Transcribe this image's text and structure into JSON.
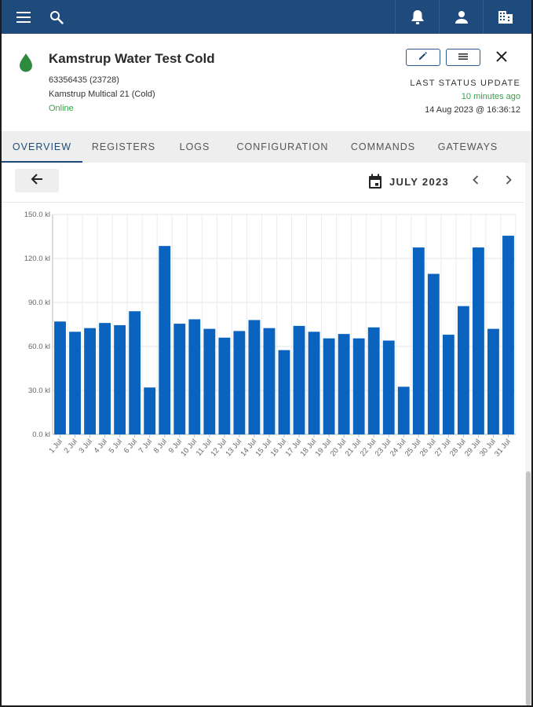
{
  "appbar": {
    "icons": [
      "menu-icon",
      "search-icon",
      "bell-icon",
      "account-icon",
      "building-icon"
    ]
  },
  "device": {
    "title": "Kamstrup Water Test Cold",
    "id_line": "63356435 (23728)",
    "model": "Kamstrup Multical 21 (Cold)",
    "status": "Online",
    "status_color": "#3aa14a",
    "icon": "water-drop-icon",
    "icon_color": "#2e8b3e"
  },
  "status_update": {
    "label": "LAST STATUS UPDATE",
    "ago": "10 minutes ago",
    "timestamp": "14 Aug 2023 @ 16:36:12"
  },
  "tabs": [
    {
      "label": "OVERVIEW",
      "active": true
    },
    {
      "label": "REGISTERS",
      "active": false
    },
    {
      "label": "LOGS",
      "active": false
    },
    {
      "label": "CONFIGURATION",
      "active": false
    },
    {
      "label": "COMMANDS",
      "active": false
    },
    {
      "label": "GATEWAYS",
      "active": false
    }
  ],
  "toolbar": {
    "month_label": "JULY 2023"
  },
  "colors": {
    "appbar": "#1f4b7c",
    "bar": "#0a64bf",
    "accent": "#1f4b7c"
  },
  "chart_data": {
    "type": "bar",
    "title": "",
    "xlabel": "",
    "ylabel": "",
    "ylim": [
      0,
      150
    ],
    "grid": true,
    "yticks": [
      "0.0 kl",
      "30.0 kl",
      "60.0 kl",
      "90.0 kl",
      "120.0 kl",
      "150.0 kl"
    ],
    "ytick_values": [
      0,
      30,
      60,
      90,
      120,
      150
    ],
    "categories": [
      "1 Jul",
      "2 Jul",
      "3 Jul",
      "4 Jul",
      "5 Jul",
      "6 Jul",
      "7 Jul",
      "8 Jul",
      "9 Jul",
      "10 Jul",
      "11 Jul",
      "12 Jul",
      "13 Jul",
      "14 Jul",
      "15 Jul",
      "16 Jul",
      "17 Jul",
      "18 Jul",
      "19 Jul",
      "20 Jul",
      "21 Jul",
      "22 Jul",
      "23 Jul",
      "24 Jul",
      "25 Jul",
      "26 Jul",
      "27 Jul",
      "28 Jul",
      "29 Jul",
      "30 Jul",
      "31 Jul"
    ],
    "values": [
      77,
      70,
      72.5,
      76,
      74.5,
      84,
      32,
      128.5,
      75.5,
      78.5,
      72,
      66,
      70.5,
      78,
      72.5,
      57.5,
      74,
      70,
      65.5,
      68.5,
      65.5,
      73,
      64,
      32.5,
      127.5,
      109.5,
      68,
      87.5,
      127.5,
      72,
      135.5
    ]
  }
}
